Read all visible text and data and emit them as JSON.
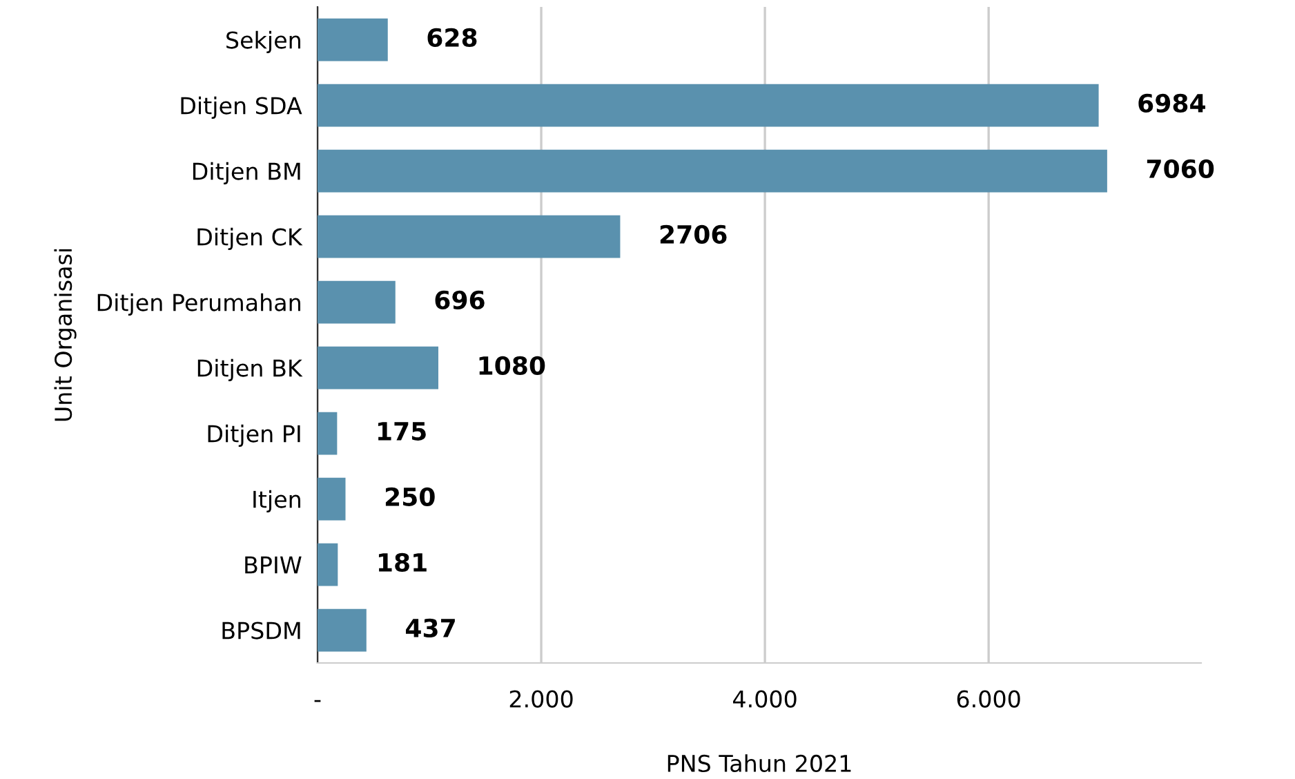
{
  "chart_data": {
    "type": "bar",
    "orientation": "horizontal",
    "xlabel": "PNS Tahun 2021",
    "ylabel": "Unit Organisasi",
    "categories": [
      "Sekjen",
      "Ditjen SDA",
      "Ditjen BM",
      "Ditjen CK",
      "Ditjen Perumahan",
      "Ditjen BK",
      "Ditjen PI",
      "Itjen",
      "BPIW",
      "BPSDM"
    ],
    "values": [
      628,
      6984,
      7060,
      2706,
      696,
      1080,
      175,
      250,
      181,
      437
    ],
    "color": "#5a91ae",
    "xlim": [
      0,
      7900
    ],
    "xticks": [
      {
        "value": 0,
        "label": "-"
      },
      {
        "value": 2000,
        "label": "2.000"
      },
      {
        "value": 4000,
        "label": "4.000"
      },
      {
        "value": 6000,
        "label": "6.000"
      }
    ],
    "grid": "x",
    "data_labels": true
  }
}
